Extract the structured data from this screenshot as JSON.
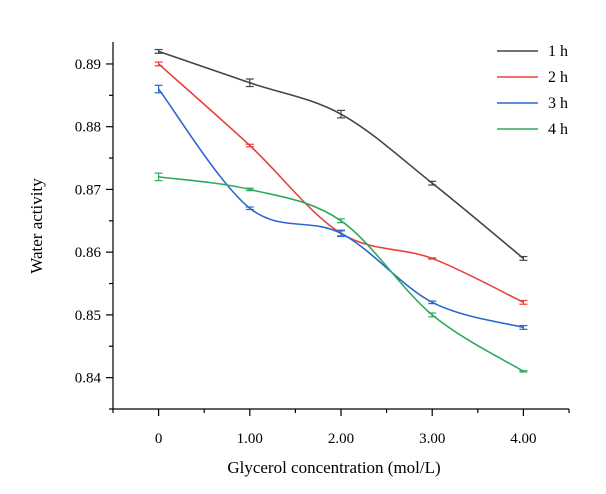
{
  "chart_data": {
    "type": "line",
    "xlabel": "Glycerol concentration (mol/L)",
    "ylabel": "Water activity",
    "x": [
      0,
      1,
      2,
      3,
      4
    ],
    "x_tick_labels": [
      "0",
      "1.00",
      "2.00",
      "3.00",
      "4.00"
    ],
    "xlim": [
      -0.5,
      4.5
    ],
    "ylim": [
      0.835,
      0.8935
    ],
    "y_ticks": [
      0.84,
      0.85,
      0.86,
      0.87,
      0.88,
      0.89
    ],
    "y_tick_labels": [
      "0.84",
      "0.85",
      "0.86",
      "0.87",
      "0.88",
      "0.89"
    ],
    "legend_position": "top-right",
    "series": [
      {
        "name": "1 h",
        "color": "#444444",
        "values": [
          0.892,
          0.887,
          0.882,
          0.871,
          0.859
        ],
        "errors": [
          0.0003,
          0.0006,
          0.0006,
          0.0003,
          0.0003
        ]
      },
      {
        "name": "2 h",
        "color": "#e8403c",
        "values": [
          0.89,
          0.877,
          0.863,
          0.859,
          0.852
        ],
        "errors": [
          0.0003,
          0.0002,
          0.0004,
          0.0001,
          0.0003
        ]
      },
      {
        "name": "3 h",
        "color": "#2a68d0",
        "values": [
          0.886,
          0.867,
          0.863,
          0.852,
          0.848
        ],
        "errors": [
          0.0006,
          0.0002,
          0.0005,
          0.0002,
          0.0003
        ]
      },
      {
        "name": "4 h",
        "color": "#2eaa5e",
        "values": [
          0.872,
          0.87,
          0.865,
          0.85,
          0.841
        ],
        "errors": [
          0.0006,
          0.0002,
          0.0003,
          0.0003,
          0.0001
        ]
      }
    ]
  }
}
